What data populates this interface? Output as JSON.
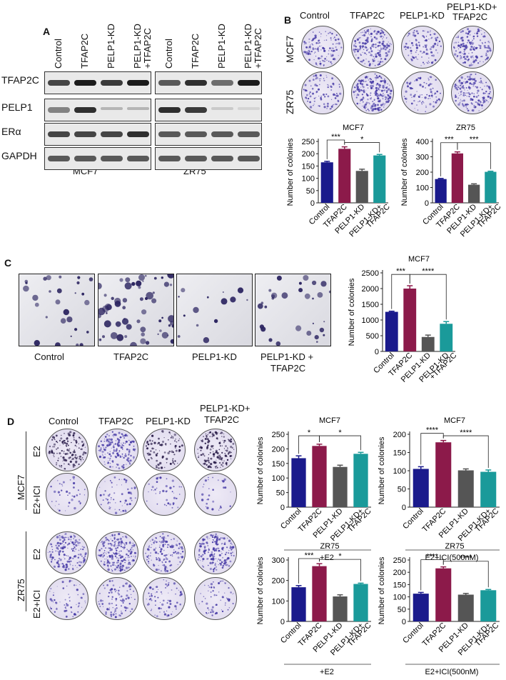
{
  "panels": {
    "A": "A",
    "B": "B",
    "C": "C",
    "D": "D"
  },
  "panelA": {
    "lanes": [
      "Control",
      "TFAP2C",
      "PELP1-KD",
      "PELP1-KD\n+TFAP2C"
    ],
    "lane_line1": [
      "Control",
      "TFAP2C",
      "PELP1-KD",
      "PELP1-KD"
    ],
    "lane_line2": [
      "",
      "",
      "",
      "+TFAP2C"
    ],
    "proteins": [
      "TFAP2C",
      "PELP1",
      "ERα",
      "GAPDH"
    ],
    "cell_lines": [
      "MCF7",
      "ZR75"
    ]
  },
  "panelB": {
    "columns": [
      "Control",
      "TFAP2C",
      "PELP1-KD",
      "PELP1-KD+\nTFAP2C"
    ],
    "col_line1": [
      "Control",
      "TFAP2C",
      "PELP1-KD",
      "PELP1-KD+"
    ],
    "col_line2": [
      "",
      "",
      "",
      "TFAP2C"
    ],
    "rows": [
      "MCF7",
      "ZR75"
    ]
  },
  "panelC": {
    "images": [
      "Control",
      "TFAP2C",
      "PELP1-KD",
      "PELP1-KD +"
    ],
    "image_line2": [
      "",
      "",
      "",
      "TFAP2C"
    ]
  },
  "panelD": {
    "columns": [
      "Control",
      "TFAP2C",
      "PELP1-KD",
      "PELP1-KD+"
    ],
    "col_line2": [
      "",
      "",
      "",
      "TFAP2C"
    ],
    "cell_lines": [
      "MCF7",
      "ZR75"
    ],
    "treatments": [
      "E2",
      "E2+ICI"
    ]
  },
  "chart_data": [
    {
      "id": "B-MCF7",
      "type": "bar",
      "title": "MCF7",
      "ylabel": "Number of colonies",
      "categories": [
        "Control",
        "TFAP2C",
        "PELP1-KD",
        "PELP1-KD+\nTFAP2C"
      ],
      "cat_lines": [
        [
          "Control"
        ],
        [
          "TFAP2C"
        ],
        [
          "PELP1-KD"
        ],
        [
          "PELP1-KD+",
          "TFAP2C"
        ]
      ],
      "values": [
        165,
        220,
        130,
        193
      ],
      "errors": [
        4,
        8,
        7,
        4
      ],
      "ylim": [
        0,
        250
      ],
      "yticks": [
        0,
        50,
        100,
        150,
        200,
        250
      ],
      "colors": [
        "#1a1a8c",
        "#8c1a4a",
        "#555555",
        "#1a9a9a"
      ],
      "sig": [
        {
          "from": 0,
          "to": 1,
          "label": "***"
        },
        {
          "from": 1,
          "to": 3,
          "label": "*"
        }
      ],
      "footer": ""
    },
    {
      "id": "B-ZR75",
      "type": "bar",
      "title": "ZR75",
      "ylabel": "Number of colonies",
      "categories": [
        "Control",
        "TFAP2C",
        "PELP1-KD",
        "PELP1-KD+\nTFAP2C"
      ],
      "cat_lines": [
        [
          "Control"
        ],
        [
          "TFAP2C"
        ],
        [
          "PELP1-KD"
        ],
        [
          "PELP1-KD+",
          "TFAP2C"
        ]
      ],
      "values": [
        155,
        322,
        118,
        202
      ],
      "errors": [
        4,
        10,
        6,
        4
      ],
      "ylim": [
        0,
        400
      ],
      "yticks": [
        0,
        100,
        200,
        300,
        400
      ],
      "colors": [
        "#1a1a8c",
        "#8c1a4a",
        "#555555",
        "#1a9a9a"
      ],
      "sig": [
        {
          "from": 0,
          "to": 1,
          "label": "***"
        },
        {
          "from": 1,
          "to": 3,
          "label": "***"
        }
      ],
      "footer": ""
    },
    {
      "id": "C-MCF7",
      "type": "bar",
      "title": "MCF7",
      "ylabel": "Number of colonies",
      "categories": [
        "Control",
        "TFAP2C",
        "PELP1-KD",
        "PELP1-KD\n+TFAP2C"
      ],
      "cat_lines": [
        [
          "Control"
        ],
        [
          "TFAP2C"
        ],
        [
          "PELP1-KD"
        ],
        [
          "PELP1-KD",
          "+TFAP2C"
        ]
      ],
      "values": [
        1260,
        2000,
        460,
        880
      ],
      "errors": [
        20,
        90,
        60,
        70
      ],
      "ylim": [
        0,
        2500
      ],
      "yticks": [
        0,
        500,
        1000,
        1500,
        2000,
        2500
      ],
      "colors": [
        "#1a1a8c",
        "#8c1a4a",
        "#555555",
        "#1a9a9a"
      ],
      "sig": [
        {
          "from": 0,
          "to": 1,
          "label": "***"
        },
        {
          "from": 1,
          "to": 3,
          "label": "****"
        }
      ],
      "footer": ""
    },
    {
      "id": "D-MCF7-E2",
      "type": "bar",
      "title": "MCF7",
      "ylabel": "Number of colonies",
      "categories": [
        "Control",
        "TFAP2C",
        "PELP1-KD",
        "PELP1-KD+\nTFAP2C"
      ],
      "cat_lines": [
        [
          "Control"
        ],
        [
          "TFAP2C"
        ],
        [
          "PELP1-KD"
        ],
        [
          "PELP1-KD+",
          "TFAP2C"
        ]
      ],
      "values": [
        168,
        210,
        138,
        183
      ],
      "errors": [
        8,
        6,
        6,
        5
      ],
      "ylim": [
        0,
        250
      ],
      "yticks": [
        0,
        50,
        100,
        150,
        200,
        250
      ],
      "colors": [
        "#1a1a8c",
        "#8c1a4a",
        "#555555",
        "#1a9a9a"
      ],
      "sig": [
        {
          "from": 0,
          "to": 1,
          "label": "*"
        },
        {
          "from": 1,
          "to": 3,
          "label": "*"
        }
      ],
      "footer": "+E2"
    },
    {
      "id": "D-MCF7-ICI",
      "type": "bar",
      "title": "MCF7",
      "ylabel": "Number of colonies",
      "categories": [
        "Control",
        "TFAP2C",
        "PELP1-KD",
        "PELP1-KD+\nTFAP2C"
      ],
      "cat_lines": [
        [
          "Control"
        ],
        [
          "TFAP2C"
        ],
        [
          "PELP1-KD"
        ],
        [
          "PELP1-KD+",
          "TFAP2C"
        ]
      ],
      "values": [
        105,
        178,
        101,
        97
      ],
      "errors": [
        6,
        5,
        4,
        5
      ],
      "ylim": [
        0,
        200
      ],
      "yticks": [
        0,
        50,
        100,
        150,
        200
      ],
      "colors": [
        "#1a1a8c",
        "#8c1a4a",
        "#555555",
        "#1a9a9a"
      ],
      "sig": [
        {
          "from": 0,
          "to": 1,
          "label": "****"
        },
        {
          "from": 1,
          "to": 3,
          "label": "****"
        }
      ],
      "footer": "E2+ICI(500nM)"
    },
    {
      "id": "D-ZR75-E2",
      "type": "bar",
      "title": "ZR75",
      "ylabel": "Number of colonies",
      "categories": [
        "Control",
        "TFAP2C",
        "PELP1-KD",
        "PELP1-KD+\nTFAP2C"
      ],
      "cat_lines": [
        [
          "Control"
        ],
        [
          "TFAP2C"
        ],
        [
          "PELP1-KD"
        ],
        [
          "PELP1-KD+",
          "TFAP2C"
        ]
      ],
      "values": [
        167,
        270,
        122,
        183
      ],
      "errors": [
        8,
        12,
        8,
        4
      ],
      "ylim": [
        0,
        300
      ],
      "yticks": [
        0,
        100,
        200,
        300
      ],
      "colors": [
        "#1a1a8c",
        "#8c1a4a",
        "#555555",
        "#1a9a9a"
      ],
      "sig": [
        {
          "from": 0,
          "to": 1,
          "label": "***"
        },
        {
          "from": 1,
          "to": 3,
          "label": "*"
        }
      ],
      "footer": "+E2"
    },
    {
      "id": "D-ZR75-ICI",
      "type": "bar",
      "title": "ZR75",
      "ylabel": "Number of colonies",
      "categories": [
        "Control",
        "TFAP2C",
        "PELP1-KD",
        "PELP1-KD+\nTFAP2C"
      ],
      "cat_lines": [
        [
          "Control"
        ],
        [
          "TFAP2C"
        ],
        [
          "PELP1-KD"
        ],
        [
          "PELP1-KD+",
          "TFAP2C"
        ]
      ],
      "values": [
        113,
        216,
        109,
        127
      ],
      "errors": [
        5,
        6,
        5,
        3
      ],
      "ylim": [
        0,
        250
      ],
      "yticks": [
        0,
        50,
        100,
        150,
        200,
        250
      ],
      "colors": [
        "#1a1a8c",
        "#8c1a4a",
        "#555555",
        "#1a9a9a"
      ],
      "sig": [
        {
          "from": 0,
          "to": 1,
          "label": "****"
        },
        {
          "from": 1,
          "to": 3,
          "label": "****"
        }
      ],
      "footer": "E2+ICI(500nM)"
    }
  ]
}
